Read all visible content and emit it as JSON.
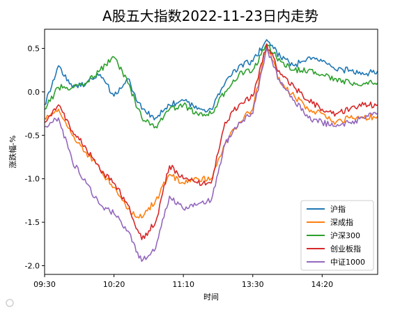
{
  "chart_data": {
    "type": "line",
    "title": "A股五大指数2022-11-23日内走势",
    "xlabel": "时间",
    "ylabel": "涨跌幅-%",
    "ylim": [
      -2.1,
      0.72
    ],
    "yticks": [
      0.5,
      0.0,
      -0.5,
      -1.0,
      -1.5,
      -2.0
    ],
    "ytick_labels": [
      "0.5",
      "0.0",
      "-0.5",
      "-1.0",
      "-1.5",
      "-2.0"
    ],
    "x_tick_labels": [
      "09:30",
      "10:20",
      "11:10",
      "13:30",
      "14:20"
    ],
    "legend_position": "lower-right",
    "x": [
      "09:30",
      "09:40",
      "09:50",
      "10:00",
      "10:10",
      "10:20",
      "10:30",
      "10:40",
      "10:50",
      "11:00",
      "11:10",
      "11:20",
      "11:30",
      "13:10",
      "13:20",
      "13:30",
      "13:40",
      "13:50",
      "14:00",
      "14:10",
      "14:20",
      "14:30",
      "14:40",
      "14:50",
      "15:00"
    ],
    "series": [
      {
        "name": "沪指",
        "color": "#1f77b4",
        "values": [
          -0.15,
          0.3,
          0.05,
          0.1,
          0.2,
          -0.05,
          0.15,
          -0.2,
          -0.3,
          -0.15,
          -0.1,
          -0.2,
          -0.2,
          0.1,
          0.3,
          0.35,
          0.6,
          0.4,
          0.3,
          0.4,
          0.35,
          0.25,
          0.25,
          0.2,
          0.24
        ]
      },
      {
        "name": "深成指",
        "color": "#ff7f0e",
        "values": [
          -0.3,
          -0.2,
          -0.5,
          -0.7,
          -0.9,
          -1.1,
          -1.35,
          -1.45,
          -1.25,
          -0.95,
          -1.05,
          -1.0,
          -1.0,
          -0.6,
          -0.35,
          -0.2,
          0.55,
          0.1,
          -0.05,
          -0.2,
          -0.25,
          -0.35,
          -0.3,
          -0.3,
          -0.28
        ]
      },
      {
        "name": "沪深300",
        "color": "#2ca02c",
        "values": [
          -0.2,
          0.05,
          0.05,
          0.1,
          0.25,
          0.4,
          0.1,
          -0.3,
          -0.4,
          -0.2,
          -0.15,
          -0.25,
          -0.25,
          0.0,
          0.2,
          0.25,
          0.55,
          0.35,
          0.25,
          0.25,
          0.2,
          0.15,
          0.1,
          0.1,
          0.1
        ]
      },
      {
        "name": "创业板指",
        "color": "#d62728",
        "values": [
          -0.35,
          -0.15,
          -0.45,
          -0.65,
          -0.9,
          -1.05,
          -1.3,
          -1.7,
          -1.5,
          -0.85,
          -1.0,
          -1.05,
          -1.05,
          -0.35,
          -0.15,
          -0.05,
          0.55,
          0.2,
          0.05,
          -0.1,
          -0.2,
          -0.25,
          -0.2,
          -0.15,
          -0.15
        ]
      },
      {
        "name": "中证1000",
        "color": "#9467bd",
        "values": [
          -0.4,
          -0.3,
          -0.8,
          -1.05,
          -1.3,
          -1.4,
          -1.6,
          -1.95,
          -1.8,
          -1.2,
          -1.35,
          -1.3,
          -1.25,
          -0.6,
          -0.35,
          -0.25,
          0.5,
          0.1,
          -0.1,
          -0.3,
          -0.35,
          -0.4,
          -0.35,
          -0.3,
          -0.25
        ]
      }
    ]
  }
}
